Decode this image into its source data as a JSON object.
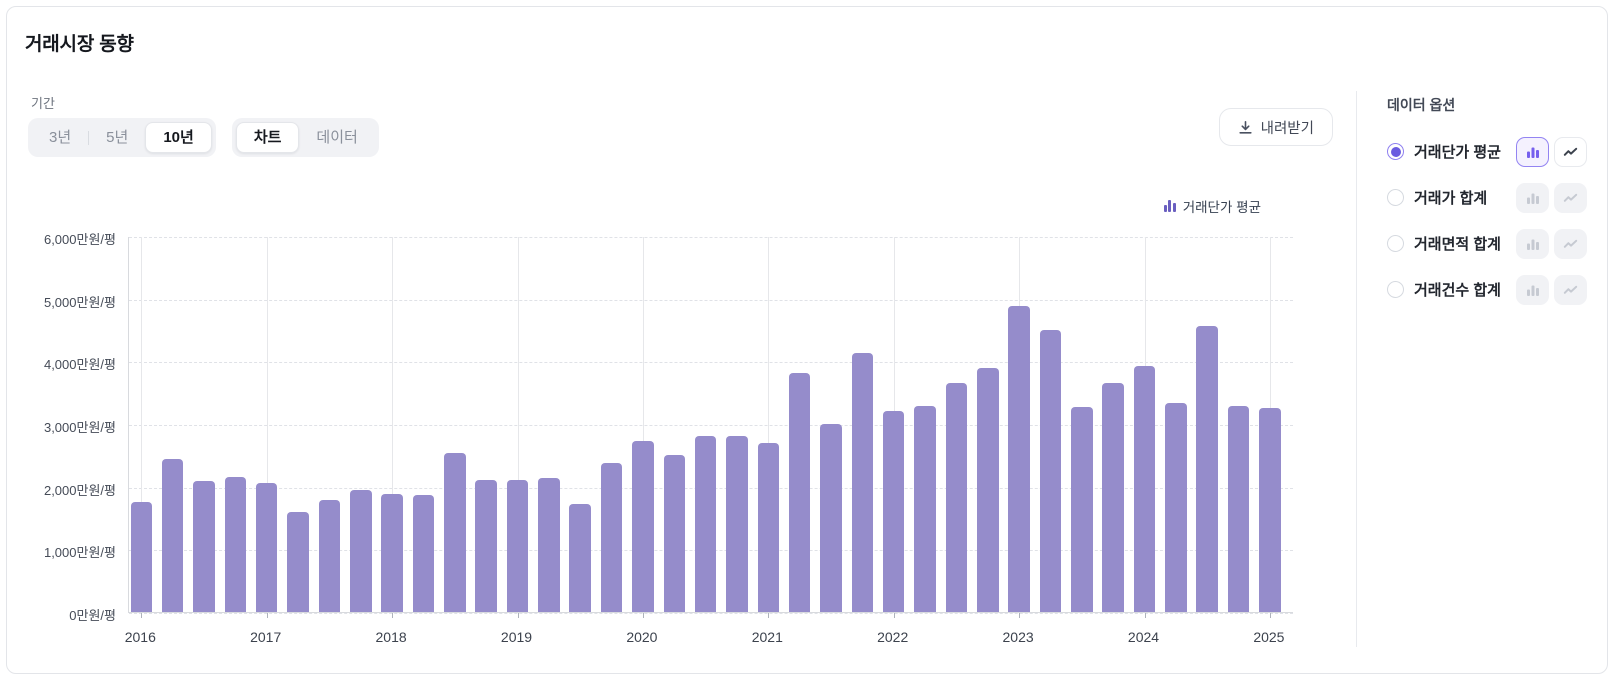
{
  "header": {
    "title": "거래시장 동향"
  },
  "controls": {
    "period_label": "기간",
    "period_options": [
      {
        "label": "3년",
        "selected": false
      },
      {
        "label": "5년",
        "selected": false
      },
      {
        "label": "10년",
        "selected": true
      }
    ],
    "view_options": [
      {
        "label": "차트",
        "selected": true
      },
      {
        "label": "데이터",
        "selected": false
      }
    ],
    "download_label": "내려받기"
  },
  "legend": {
    "label": "거래단가 평균"
  },
  "chart_data": {
    "type": "bar",
    "title": "거래시장 동향",
    "series_name": "거래단가 평균",
    "unit": "만원/평",
    "ylim": [
      0,
      6000
    ],
    "y_tick_step": 1000,
    "y_tick_labels": [
      "0만원/평",
      "1,000만원/평",
      "2,000만원/평",
      "3,000만원/평",
      "4,000만원/평",
      "5,000만원/평",
      "6,000만원/평"
    ],
    "x_tick_labels": [
      "2016",
      "2017",
      "2018",
      "2019",
      "2020",
      "2021",
      "2022",
      "2023",
      "2024",
      "2025"
    ],
    "bars_per_year": 4,
    "grid": true,
    "legend_position": "top-right",
    "bar_color": "#958ccb",
    "x": [
      "2016 Q1",
      "2016 Q2",
      "2016 Q3",
      "2016 Q4",
      "2017 Q1",
      "2017 Q2",
      "2017 Q3",
      "2017 Q4",
      "2018 Q1",
      "2018 Q2",
      "2018 Q3",
      "2018 Q4",
      "2019 Q1",
      "2019 Q2",
      "2019 Q3",
      "2019 Q4",
      "2020 Q1",
      "2020 Q2",
      "2020 Q3",
      "2020 Q4",
      "2021 Q1",
      "2021 Q2",
      "2021 Q3",
      "2021 Q4",
      "2022 Q1",
      "2022 Q2",
      "2022 Q3",
      "2022 Q4",
      "2023 Q1",
      "2023 Q2",
      "2023 Q3",
      "2023 Q4",
      "2024 Q1",
      "2024 Q2",
      "2024 Q3",
      "2024 Q4",
      "2025 Q1"
    ],
    "values": [
      1750,
      2440,
      2090,
      2150,
      2060,
      1600,
      1780,
      1950,
      1880,
      1860,
      2530,
      2100,
      2110,
      2140,
      1720,
      2370,
      2730,
      2510,
      2810,
      2810,
      2690,
      3810,
      3000,
      4130,
      3200,
      3290,
      3660,
      3890,
      4880,
      4500,
      3270,
      3650,
      3930,
      3340,
      4560,
      3280,
      3260
    ]
  },
  "sidebar": {
    "heading": "데이터 옵션",
    "options": [
      {
        "label": "거래단가 평균",
        "selected": true,
        "controls_enabled": true,
        "active_chart_type": "bar"
      },
      {
        "label": "거래가 합계",
        "selected": false,
        "controls_enabled": false,
        "active_chart_type": null
      },
      {
        "label": "거래면적 합계",
        "selected": false,
        "controls_enabled": false,
        "active_chart_type": null
      },
      {
        "label": "거래건수 합계",
        "selected": false,
        "controls_enabled": false,
        "active_chart_type": null
      }
    ]
  },
  "colors": {
    "bar_fill": "#958ccb",
    "legend_icon": "#6a5fc0",
    "accent_purple": "#6a5be0",
    "active_button_bg": "#f4f1fe",
    "active_button_border": "#9384f2",
    "grid_dashed": "#e0e2e7",
    "grid_solid": "#e6e7ea"
  }
}
